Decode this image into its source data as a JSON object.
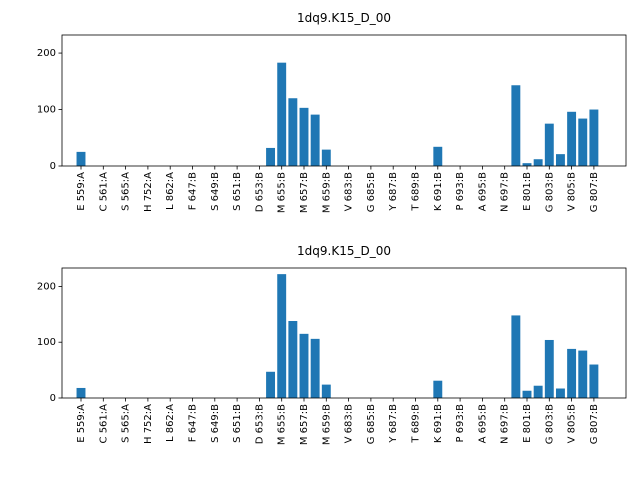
{
  "chart_data": [
    {
      "type": "bar",
      "title": "1dq9.K15_D_00",
      "color": "#1f77b4",
      "categories": [
        "E 559:A",
        null,
        "C 561:A",
        null,
        "S 565:A",
        null,
        "H 752:A",
        null,
        "L 862:A",
        null,
        "F 647:B",
        null,
        "S 649:B",
        null,
        "S 651:B",
        null,
        "D 653:B",
        null,
        "M 655:B",
        null,
        "M 657:B",
        null,
        "M 659:B",
        null,
        "V 683:B",
        null,
        "G 685:B",
        null,
        "Y 687:B",
        null,
        "T 689:B",
        null,
        "K 691:B",
        null,
        "P 693:B",
        null,
        "A 695:B",
        null,
        "N 697:B",
        null,
        "E 801:B",
        null,
        "G 803:B",
        null,
        "V 805:B",
        null,
        "G 807:B"
      ],
      "values": [
        25,
        0,
        0,
        0,
        0,
        0,
        0,
        0,
        0,
        0,
        0,
        0,
        0,
        0,
        0,
        0,
        0,
        32,
        183,
        120,
        103,
        91,
        29,
        0,
        0,
        0,
        0,
        0,
        0,
        0,
        0,
        0,
        34,
        0,
        0,
        0,
        0,
        0,
        0,
        143,
        5,
        12,
        75,
        21,
        96,
        84,
        100
      ],
      "ylim": [
        0,
        232
      ],
      "yticks": [
        0,
        100,
        200
      ]
    },
    {
      "type": "bar",
      "title": "1dq9.K15_D_00",
      "color": "#1f77b4",
      "categories": [
        "E 559:A",
        null,
        "C 561:A",
        null,
        "S 565:A",
        null,
        "H 752:A",
        null,
        "L 862:A",
        null,
        "F 647:B",
        null,
        "S 649:B",
        null,
        "S 651:B",
        null,
        "D 653:B",
        null,
        "M 655:B",
        null,
        "M 657:B",
        null,
        "M 659:B",
        null,
        "V 683:B",
        null,
        "G 685:B",
        null,
        "Y 687:B",
        null,
        "T 689:B",
        null,
        "K 691:B",
        null,
        "P 693:B",
        null,
        "A 695:B",
        null,
        "N 697:B",
        null,
        "E 801:B",
        null,
        "G 803:B",
        null,
        "V 805:B",
        null,
        "G 807:B"
      ],
      "values": [
        18,
        0,
        0,
        0,
        0,
        0,
        0,
        0,
        0,
        0,
        0,
        0,
        0,
        0,
        0,
        0,
        0,
        47,
        222,
        138,
        115,
        106,
        24,
        0,
        0,
        0,
        0,
        0,
        0,
        0,
        0,
        0,
        31,
        0,
        0,
        0,
        0,
        0,
        0,
        148,
        13,
        22,
        104,
        17,
        88,
        85,
        60
      ],
      "ylim": [
        0,
        233
      ],
      "yticks": [
        0,
        100,
        200
      ]
    }
  ]
}
